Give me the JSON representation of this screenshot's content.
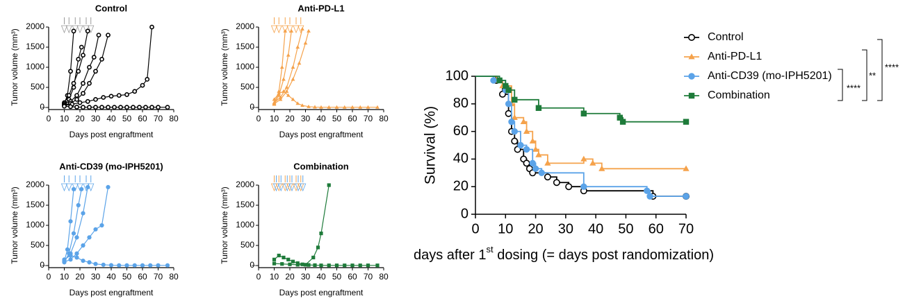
{
  "chart_data": [
    {
      "type": "line",
      "title": "Control",
      "x_label": "Days post engraftment",
      "y_label": "Tumor volume (mm³)",
      "xlim": [
        0,
        80
      ],
      "xticks": [
        0,
        10,
        20,
        30,
        40,
        50,
        60,
        70,
        80
      ],
      "ylim": [
        0,
        2000
      ],
      "yticks": [
        0,
        500,
        1000,
        1500,
        2000
      ],
      "color": "#000000",
      "marker": "open-circle",
      "dosing_days": [
        10,
        13,
        17,
        20,
        24,
        27
      ],
      "dosing_colors": [
        "#999999"
      ],
      "series": [
        {
          "x": [
            10,
            12,
            14,
            16
          ],
          "values": [
            100,
            300,
            900,
            1900
          ]
        },
        {
          "x": [
            10,
            13,
            16,
            19,
            21
          ],
          "values": [
            80,
            200,
            500,
            1200,
            1500
          ]
        },
        {
          "x": [
            10,
            13,
            16,
            19,
            22,
            25
          ],
          "values": [
            120,
            300,
            600,
            900,
            1300,
            1900
          ]
        },
        {
          "x": [
            10,
            14,
            18,
            22,
            26,
            29,
            32
          ],
          "values": [
            90,
            150,
            300,
            600,
            1000,
            1250,
            1800
          ]
        },
        {
          "x": [
            10,
            14,
            18,
            22,
            26,
            30,
            34,
            38
          ],
          "values": [
            60,
            100,
            200,
            350,
            600,
            900,
            1200,
            1800
          ]
        },
        {
          "x": [
            10,
            15,
            20,
            25,
            30,
            35,
            40,
            45,
            50,
            55,
            60,
            63,
            66
          ],
          "values": [
            50,
            80,
            120,
            150,
            200,
            250,
            280,
            300,
            320,
            400,
            550,
            700,
            2000
          ]
        },
        {
          "x": [
            10,
            14,
            18,
            22,
            26,
            30,
            34,
            38,
            42,
            46,
            50,
            54,
            58,
            62,
            66,
            70,
            76
          ],
          "values": [
            30,
            20,
            10,
            5,
            5,
            5,
            5,
            5,
            5,
            5,
            5,
            5,
            5,
            5,
            5,
            5,
            5
          ]
        }
      ]
    },
    {
      "type": "line",
      "title": "Anti-PD-L1",
      "x_label": "Days post engraftment",
      "y_label": "Tumor volume (mm³)",
      "xlim": [
        0,
        80
      ],
      "xticks": [
        0,
        10,
        20,
        30,
        40,
        50,
        60,
        70,
        80
      ],
      "ylim": [
        0,
        2000
      ],
      "yticks": [
        0,
        500,
        1000,
        1500,
        2000
      ],
      "color": "#f5a24b",
      "marker": "triangle",
      "dosing_days": [
        10,
        13,
        17,
        20,
        24,
        27
      ],
      "dosing_colors": [
        "#f5a24b"
      ],
      "series": [
        {
          "x": [
            10,
            13,
            15,
            17
          ],
          "values": [
            100,
            400,
            1000,
            1900
          ]
        },
        {
          "x": [
            10,
            13,
            16,
            19,
            21
          ],
          "values": [
            80,
            300,
            700,
            1300,
            1900
          ]
        },
        {
          "x": [
            10,
            14,
            18,
            22,
            25,
            28
          ],
          "values": [
            120,
            250,
            500,
            1000,
            1500,
            1950
          ]
        },
        {
          "x": [
            10,
            14,
            18,
            22,
            26,
            30,
            32
          ],
          "values": [
            90,
            200,
            400,
            700,
            1100,
            1600,
            1900
          ]
        },
        {
          "x": [
            10,
            13,
            16,
            19,
            22,
            25,
            28,
            32,
            36,
            40,
            45,
            50,
            55,
            60,
            65,
            70,
            76
          ],
          "values": [
            200,
            350,
            400,
            300,
            200,
            100,
            50,
            20,
            10,
            5,
            5,
            5,
            5,
            5,
            5,
            5,
            5
          ]
        }
      ]
    },
    {
      "type": "line",
      "title": "Anti-CD39 (mo-IPH5201)",
      "x_label": "Days post engraftment",
      "y_label": "Tumor volume (mm³)",
      "xlim": [
        0,
        80
      ],
      "xticks": [
        0,
        10,
        20,
        30,
        40,
        50,
        60,
        70,
        80
      ],
      "ylim": [
        0,
        2000
      ],
      "yticks": [
        0,
        500,
        1000,
        1500,
        2000
      ],
      "color": "#5ba3e8",
      "marker": "circle",
      "dosing_days": [
        10,
        13,
        17,
        20,
        24,
        27
      ],
      "dosing_colors": [
        "#5ba3e8"
      ],
      "series": [
        {
          "x": [
            10,
            12,
            14,
            16
          ],
          "values": [
            100,
            400,
            1100,
            1900
          ]
        },
        {
          "x": [
            10,
            13,
            16,
            19,
            21
          ],
          "values": [
            80,
            300,
            800,
            1500,
            1900
          ]
        },
        {
          "x": [
            10,
            14,
            18,
            22,
            25
          ],
          "values": [
            120,
            300,
            700,
            1300,
            1950
          ]
        },
        {
          "x": [
            10,
            14,
            18,
            22,
            26,
            30,
            34,
            38
          ],
          "values": [
            90,
            150,
            300,
            500,
            700,
            900,
            1000,
            1950
          ]
        },
        {
          "x": [
            10,
            14,
            18,
            22,
            26,
            30,
            35,
            40,
            45,
            50,
            55,
            60,
            65,
            70,
            76
          ],
          "values": [
            150,
            250,
            200,
            120,
            80,
            40,
            20,
            10,
            5,
            5,
            5,
            5,
            5,
            5,
            5
          ]
        }
      ]
    },
    {
      "type": "line",
      "title": "Combination",
      "x_label": "Days post engraftment",
      "y_label": "Tumor volume (mm³)",
      "xlim": [
        0,
        80
      ],
      "xticks": [
        0,
        10,
        20,
        30,
        40,
        50,
        60,
        70,
        80
      ],
      "ylim": [
        0,
        2000
      ],
      "yticks": [
        0,
        500,
        1000,
        1500,
        2000
      ],
      "color": "#1e7b3a",
      "marker": "square",
      "dosing_days": [
        10,
        13,
        17,
        20,
        24,
        27
      ],
      "dosing_colors": [
        "#f5a24b",
        "#5ba3e8"
      ],
      "series": [
        {
          "x": [
            10,
            15,
            20,
            25,
            30,
            35,
            38,
            40,
            45
          ],
          "values": [
            50,
            40,
            30,
            20,
            20,
            200,
            450,
            800,
            2000
          ]
        },
        {
          "x": [
            10,
            13,
            16,
            19,
            22,
            25,
            28,
            32,
            36,
            40,
            45,
            50,
            55,
            60,
            65,
            70,
            76
          ],
          "values": [
            150,
            250,
            200,
            150,
            100,
            60,
            30,
            15,
            10,
            5,
            5,
            5,
            5,
            5,
            5,
            5,
            5
          ]
        }
      ]
    },
    {
      "type": "step",
      "y_label": "Survival (%)",
      "x_label": [
        "days after 1",
        "st",
        " dosing (= days post randomization)"
      ],
      "xlim": [
        0,
        70
      ],
      "xticks": [
        0,
        10,
        20,
        30,
        40,
        50,
        60,
        70
      ],
      "ylim": [
        0,
        100
      ],
      "yticks": [
        0,
        20,
        40,
        60,
        80,
        100
      ],
      "annotations": [
        "****",
        "**",
        "****"
      ],
      "series": [
        {
          "name": "Control",
          "color": "#000000",
          "marker": "open-circle",
          "x": [
            0,
            7,
            9,
            11,
            12,
            13,
            14,
            16,
            17,
            18,
            19,
            24,
            27,
            31,
            36,
            59,
            70
          ],
          "values": [
            100,
            97,
            87,
            73,
            60,
            53,
            47,
            40,
            37,
            33,
            30,
            27,
            23,
            20,
            17,
            13,
            13
          ]
        },
        {
          "name": "Anti-PD-L1",
          "color": "#f5a24b",
          "marker": "triangle",
          "x": [
            0,
            7,
            9,
            12,
            13,
            16,
            17,
            19,
            20,
            21,
            24,
            36,
            39,
            42,
            70
          ],
          "values": [
            100,
            97,
            93,
            80,
            70,
            67,
            60,
            53,
            47,
            43,
            37,
            40,
            37,
            33,
            33
          ]
        },
        {
          "name": "Anti-CD39 (mo-IPH5201)",
          "color": "#5ba3e8",
          "marker": "circle",
          "x": [
            0,
            6,
            10,
            11,
            12,
            13,
            15,
            17,
            19,
            20,
            22,
            36,
            57,
            58,
            70
          ],
          "values": [
            100,
            97,
            90,
            80,
            67,
            60,
            50,
            47,
            37,
            33,
            30,
            20,
            17,
            13,
            13
          ]
        },
        {
          "name": "Combination",
          "color": "#1e7b3a",
          "marker": "square",
          "x": [
            0,
            8,
            10,
            11,
            13,
            21,
            36,
            48,
            49,
            70
          ],
          "values": [
            100,
            97,
            93,
            90,
            83,
            77,
            73,
            70,
            67,
            67
          ]
        }
      ]
    }
  ]
}
